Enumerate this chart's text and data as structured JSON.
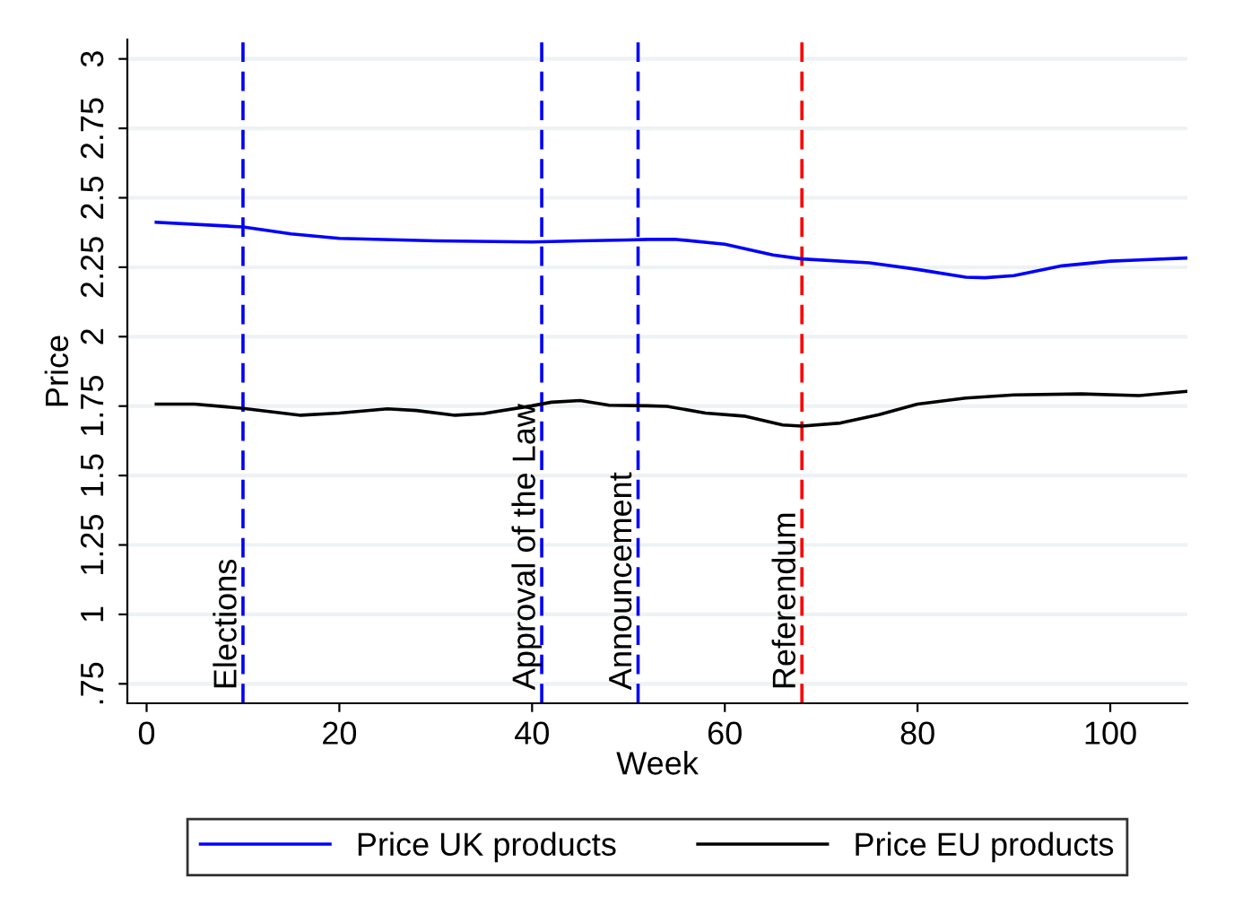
{
  "chart_data": {
    "type": "line",
    "xlabel": "Week",
    "ylabel": "Price",
    "xlim": [
      -2,
      108
    ],
    "xticks": [
      0,
      20,
      40,
      60,
      80,
      100
    ],
    "ylim": [
      0.68,
      3.07
    ],
    "yticks": [
      {
        "value": 0.75,
        "label": ".75"
      },
      1,
      1.25,
      1.5,
      1.75,
      2,
      2.25,
      2.5,
      2.75,
      3
    ],
    "grid": "y",
    "legend": "bottom",
    "line_style": "solid",
    "marker": "none",
    "series": [
      {
        "name": "Price UK products",
        "color": "#0000ff",
        "x": [
          1,
          10,
          15,
          20,
          30,
          40,
          45,
          50,
          52,
          55,
          60,
          65,
          68,
          75,
          80,
          85,
          87,
          90,
          95,
          100,
          108
        ],
        "values": [
          2.412,
          2.395,
          2.37,
          2.354,
          2.345,
          2.341,
          2.345,
          2.348,
          2.35,
          2.35,
          2.333,
          2.294,
          2.28,
          2.266,
          2.242,
          2.214,
          2.212,
          2.22,
          2.255,
          2.272,
          2.283
        ]
      },
      {
        "name": "Price EU products",
        "color": "#000000",
        "x": [
          1,
          5,
          10,
          16,
          20,
          25,
          28,
          32,
          35,
          40,
          42,
          45,
          48,
          52,
          54,
          58,
          62,
          66,
          68,
          72,
          76,
          80,
          85,
          90,
          97,
          103,
          108
        ],
        "values": [
          1.757,
          1.757,
          1.742,
          1.717,
          1.725,
          1.74,
          1.734,
          1.717,
          1.723,
          1.751,
          1.764,
          1.77,
          1.753,
          1.751,
          1.749,
          1.725,
          1.714,
          1.682,
          1.678,
          1.689,
          1.719,
          1.757,
          1.779,
          1.79,
          1.794,
          1.788,
          1.803
        ]
      }
    ],
    "ref_lines": [
      {
        "axis": "x",
        "value": 10,
        "label": "Elections",
        "color": "#0000ff",
        "line_style": "dashed"
      },
      {
        "axis": "x",
        "value": 41,
        "label": "Approval of the Law",
        "color": "#0000ff",
        "line_style": "dashed"
      },
      {
        "axis": "x",
        "value": 51,
        "label": "Announcement",
        "color": "#0000ff",
        "line_style": "dashed"
      },
      {
        "axis": "x",
        "value": 68,
        "label": "Referendum",
        "color": "#ff0000",
        "line_style": "dashed"
      }
    ]
  }
}
